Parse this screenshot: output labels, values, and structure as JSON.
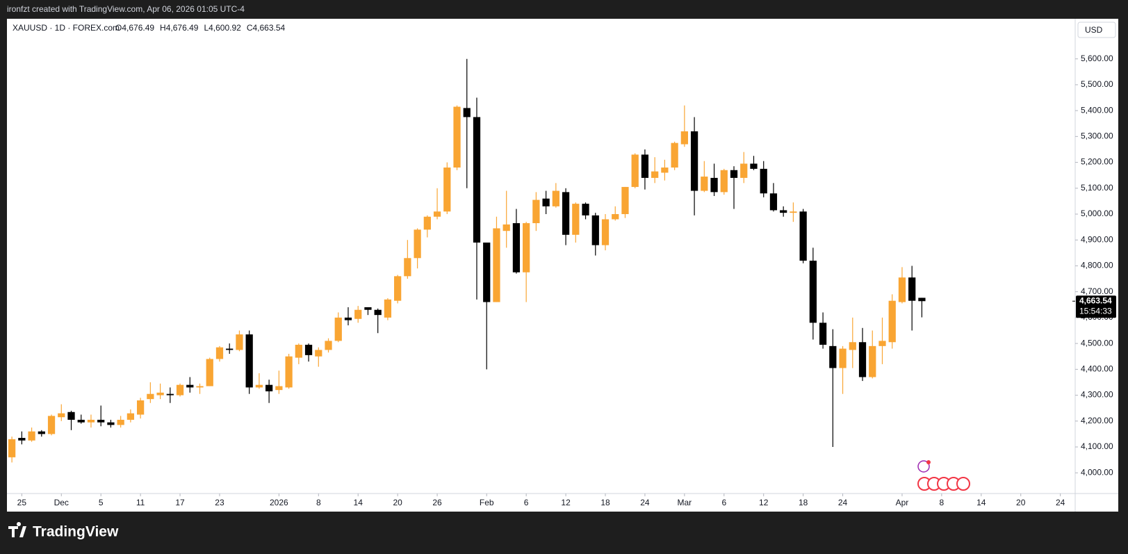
{
  "page": {
    "credit": "ironfzt created with TradingView.com, Apr 06, 2026 01:05 UTC-4",
    "brand": "TradingView"
  },
  "chart_data": {
    "type": "candlestick",
    "title": "XAUUSD · 1D · FOREX.com",
    "ohlc_labels": [
      "O4,676.49",
      "H4,676.49",
      "L4,600.92",
      "C4,663.54"
    ],
    "currency": "USD",
    "up_color": "#f9a533",
    "down_color": "#000000",
    "open": [
      4060,
      4135,
      4125,
      4160,
      4150,
      4215,
      4235,
      4205,
      4195,
      4205,
      4195,
      4185,
      4205,
      4225,
      4285,
      4300,
      4305,
      4300,
      4340,
      4330,
      4335,
      4440,
      4480,
      4475,
      4535,
      4330,
      4340,
      4320,
      4330,
      4445,
      4495,
      4450,
      4475,
      4510,
      4600,
      4595,
      4640,
      4630,
      4600,
      4665,
      4760,
      4830,
      4940,
      4990,
      5010,
      5180,
      5410,
      5375,
      4890,
      4660,
      4935,
      4965,
      4775,
      4965,
      5060,
      5030,
      5085,
      4920,
      5040,
      4995,
      4880,
      4980,
      5000,
      5105,
      5230,
      5140,
      5160,
      5180,
      5270,
      5320,
      5090,
      5140,
      5085,
      5170,
      5140,
      5195,
      5175,
      5080,
      5015,
      5005,
      5010,
      4820,
      4580,
      4490,
      4405,
      4475,
      4505,
      4370,
      4490,
      4505,
      4660,
      4755,
      4676.49
    ],
    "high": [
      4140,
      4160,
      4175,
      4165,
      4225,
      4265,
      4240,
      4225,
      4225,
      4260,
      4205,
      4220,
      4245,
      4290,
      4350,
      4345,
      4330,
      4345,
      4370,
      4345,
      4445,
      4490,
      4500,
      4550,
      4550,
      4385,
      4360,
      4395,
      4460,
      4500,
      4500,
      4485,
      4520,
      4620,
      4640,
      4645,
      4640,
      4635,
      4675,
      4765,
      4900,
      4945,
      4995,
      5100,
      5200,
      5420,
      5600,
      5450,
      4890,
      4990,
      5090,
      5020,
      4970,
      5085,
      5090,
      5120,
      5100,
      5045,
      5045,
      5005,
      5000,
      5030,
      5105,
      5235,
      5250,
      5220,
      5210,
      5280,
      5420,
      5375,
      5205,
      5195,
      5175,
      5185,
      5240,
      5225,
      5205,
      5120,
      5030,
      5045,
      5020,
      4870,
      4620,
      4555,
      4490,
      4600,
      4560,
      4550,
      4600,
      4690,
      4795,
      4800,
      4676.49
    ],
    "low": [
      4040,
      4110,
      4120,
      4140,
      4145,
      4200,
      4165,
      4190,
      4175,
      4180,
      4175,
      4175,
      4195,
      4210,
      4270,
      4285,
      4270,
      4295,
      4310,
      4305,
      4335,
      4430,
      4460,
      4470,
      4305,
      4325,
      4270,
      4305,
      4325,
      4420,
      4430,
      4410,
      4465,
      4505,
      4570,
      4580,
      4610,
      4540,
      4590,
      4655,
      4750,
      4790,
      4910,
      4980,
      5000,
      5170,
      5100,
      4670,
      4400,
      4660,
      4870,
      4770,
      4660,
      4935,
      5000,
      5025,
      4880,
      4890,
      4980,
      4840,
      4860,
      4975,
      4985,
      5100,
      5095,
      5120,
      5130,
      5170,
      5260,
      4995,
      5085,
      5070,
      5075,
      5020,
      5120,
      5170,
      5065,
      5010,
      4990,
      4970,
      4810,
      4515,
      4480,
      4100,
      4305,
      4405,
      4355,
      4365,
      4420,
      4480,
      4655,
      4550,
      4600.92
    ],
    "close": [
      4130,
      4125,
      4160,
      4150,
      4220,
      4230,
      4205,
      4195,
      4205,
      4195,
      4185,
      4205,
      4230,
      4280,
      4305,
      4310,
      4300,
      4340,
      4330,
      4335,
      4440,
      4485,
      4475,
      4535,
      4330,
      4340,
      4315,
      4335,
      4450,
      4495,
      4455,
      4475,
      4510,
      4600,
      4590,
      4630,
      4630,
      4610,
      4670,
      4760,
      4830,
      4940,
      4990,
      5010,
      5180,
      5415,
      5375,
      4890,
      4660,
      4945,
      4960,
      4775,
      4965,
      5055,
      5030,
      5090,
      4920,
      5040,
      4995,
      4880,
      4980,
      5000,
      5105,
      5230,
      5140,
      5165,
      5180,
      5275,
      5320,
      5090,
      5145,
      5085,
      5170,
      5140,
      5195,
      5175,
      5080,
      5015,
      5005,
      5010,
      4820,
      4580,
      4495,
      4405,
      4480,
      4505,
      4370,
      4490,
      4510,
      4665,
      4755,
      4665,
      4663.54
    ],
    "last_price": {
      "value": 4663.54,
      "label": "4,663.54"
    },
    "countdown": "15:54:33",
    "xlim": [
      -0.5,
      107.5
    ],
    "xticks": [
      {
        "value": 1,
        "label": "25"
      },
      {
        "value": 5,
        "label": "Dec"
      },
      {
        "value": 9,
        "label": "5"
      },
      {
        "value": 13,
        "label": "11"
      },
      {
        "value": 17,
        "label": "17"
      },
      {
        "value": 21,
        "label": "23"
      },
      {
        "value": 27,
        "label": "2026"
      },
      {
        "value": 31,
        "label": "8"
      },
      {
        "value": 35,
        "label": "14"
      },
      {
        "value": 39,
        "label": "20"
      },
      {
        "value": 43,
        "label": "26"
      },
      {
        "value": 48,
        "label": "Feb"
      },
      {
        "value": 52,
        "label": "6"
      },
      {
        "value": 56,
        "label": "12"
      },
      {
        "value": 60,
        "label": "18"
      },
      {
        "value": 64,
        "label": "24"
      },
      {
        "value": 68,
        "label": "Mar"
      },
      {
        "value": 72,
        "label": "6"
      },
      {
        "value": 76,
        "label": "12"
      },
      {
        "value": 80,
        "label": "18"
      },
      {
        "value": 84,
        "label": "24"
      },
      {
        "value": 90,
        "label": "Apr"
      },
      {
        "value": 94,
        "label": "8"
      },
      {
        "value": 98,
        "label": "14"
      },
      {
        "value": 102,
        "label": "20"
      },
      {
        "value": 106,
        "label": "24"
      }
    ],
    "ylim": [
      3920,
      5755
    ],
    "yticks": [
      {
        "value": 4000,
        "label": "4,000.00"
      },
      {
        "value": 4100,
        "label": "4,100.00"
      },
      {
        "value": 4200,
        "label": "4,200.00"
      },
      {
        "value": 4300,
        "label": "4,300.00"
      },
      {
        "value": 4400,
        "label": "4,400.00"
      },
      {
        "value": 4500,
        "label": "4,500.00"
      },
      {
        "value": 4600,
        "label": "4,600.00"
      },
      {
        "value": 4700,
        "label": "4,700.00"
      },
      {
        "value": 4800,
        "label": "4,800.00"
      },
      {
        "value": 4900,
        "label": "4,900.00"
      },
      {
        "value": 5000,
        "label": "5,000.00"
      },
      {
        "value": 5100,
        "label": "5,100.00"
      },
      {
        "value": 5200,
        "label": "5,200.00"
      },
      {
        "value": 5300,
        "label": "5,300.00"
      },
      {
        "value": 5400,
        "label": "5,400.00"
      },
      {
        "value": 5500,
        "label": "5,500.00"
      },
      {
        "value": 5600,
        "label": "5,600.00"
      }
    ],
    "grid": false
  }
}
